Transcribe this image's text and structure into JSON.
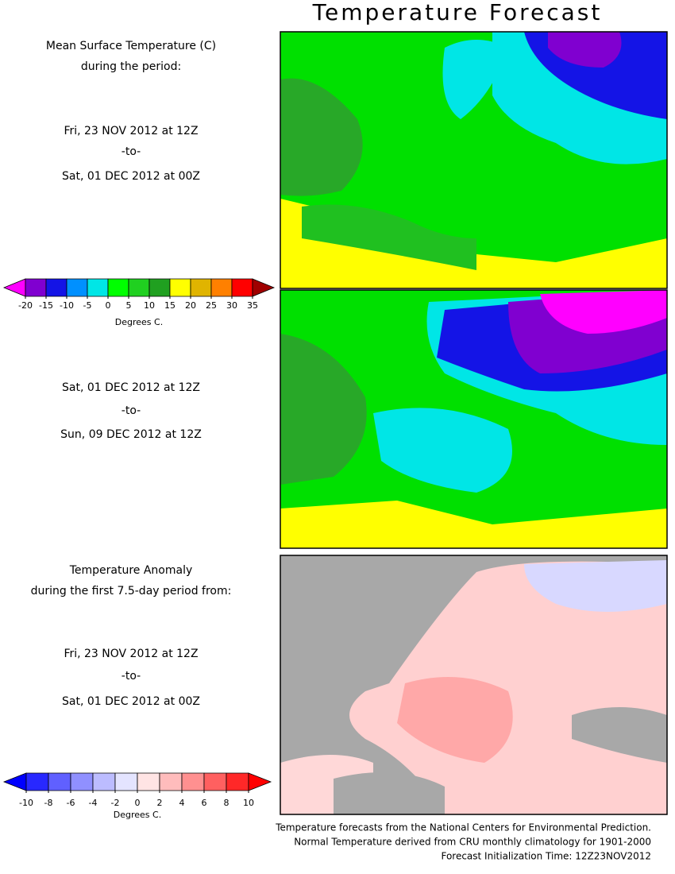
{
  "title": "Temperature Forecast",
  "panels": [
    {
      "heading": [
        "Mean Surface Temperature (C)",
        "during the period:"
      ],
      "start": "Fri, 23 NOV 2012 at 12Z",
      "separator": "-to-",
      "end": "Sat, 01 DEC 2012 at 00Z"
    },
    {
      "start": "Sat, 01 DEC 2012 at 12Z",
      "separator": "-to-",
      "end": "Sun, 09 DEC 2012 at 12Z"
    },
    {
      "heading": [
        "Temperature Anomaly",
        "during the first 7.5-day period from:"
      ],
      "start": "Fri, 23 NOV 2012 at 12Z",
      "separator": "-to-",
      "end": "Sat, 01 DEC 2012 at 00Z"
    }
  ],
  "temperature_scale": {
    "ticks": [
      -20,
      -15,
      -10,
      -5,
      0,
      5,
      10,
      15,
      20,
      25,
      30,
      35
    ],
    "colors": [
      "#ff00ff",
      "#8000d0",
      "#1414e6",
      "#0090ff",
      "#00e6e6",
      "#00ff00",
      "#20d020",
      "#20a020",
      "#ffff00",
      "#e0b400",
      "#ff8000",
      "#ff0000",
      "#a00000"
    ],
    "unit": "Degrees C."
  },
  "anomaly_scale": {
    "ticks": [
      -10,
      -8,
      -6,
      -4,
      -2,
      0,
      2,
      4,
      6,
      8,
      10
    ],
    "colors": [
      "#0000ff",
      "#2828ff",
      "#6060ff",
      "#9090ff",
      "#bcbcff",
      "#e4e4ff",
      "#ffe4e4",
      "#ffbcbc",
      "#ff9090",
      "#ff6060",
      "#ff2828",
      "#ff0000"
    ],
    "unit": "Degrees C."
  },
  "footer": [
    "Temperature forecasts from the National Centers for Environmental Prediction.",
    "Normal Temperature derived from CRU monthly climatology for 1901-2000",
    "Forecast Initialization Time: 12Z23NOV2012"
  ]
}
